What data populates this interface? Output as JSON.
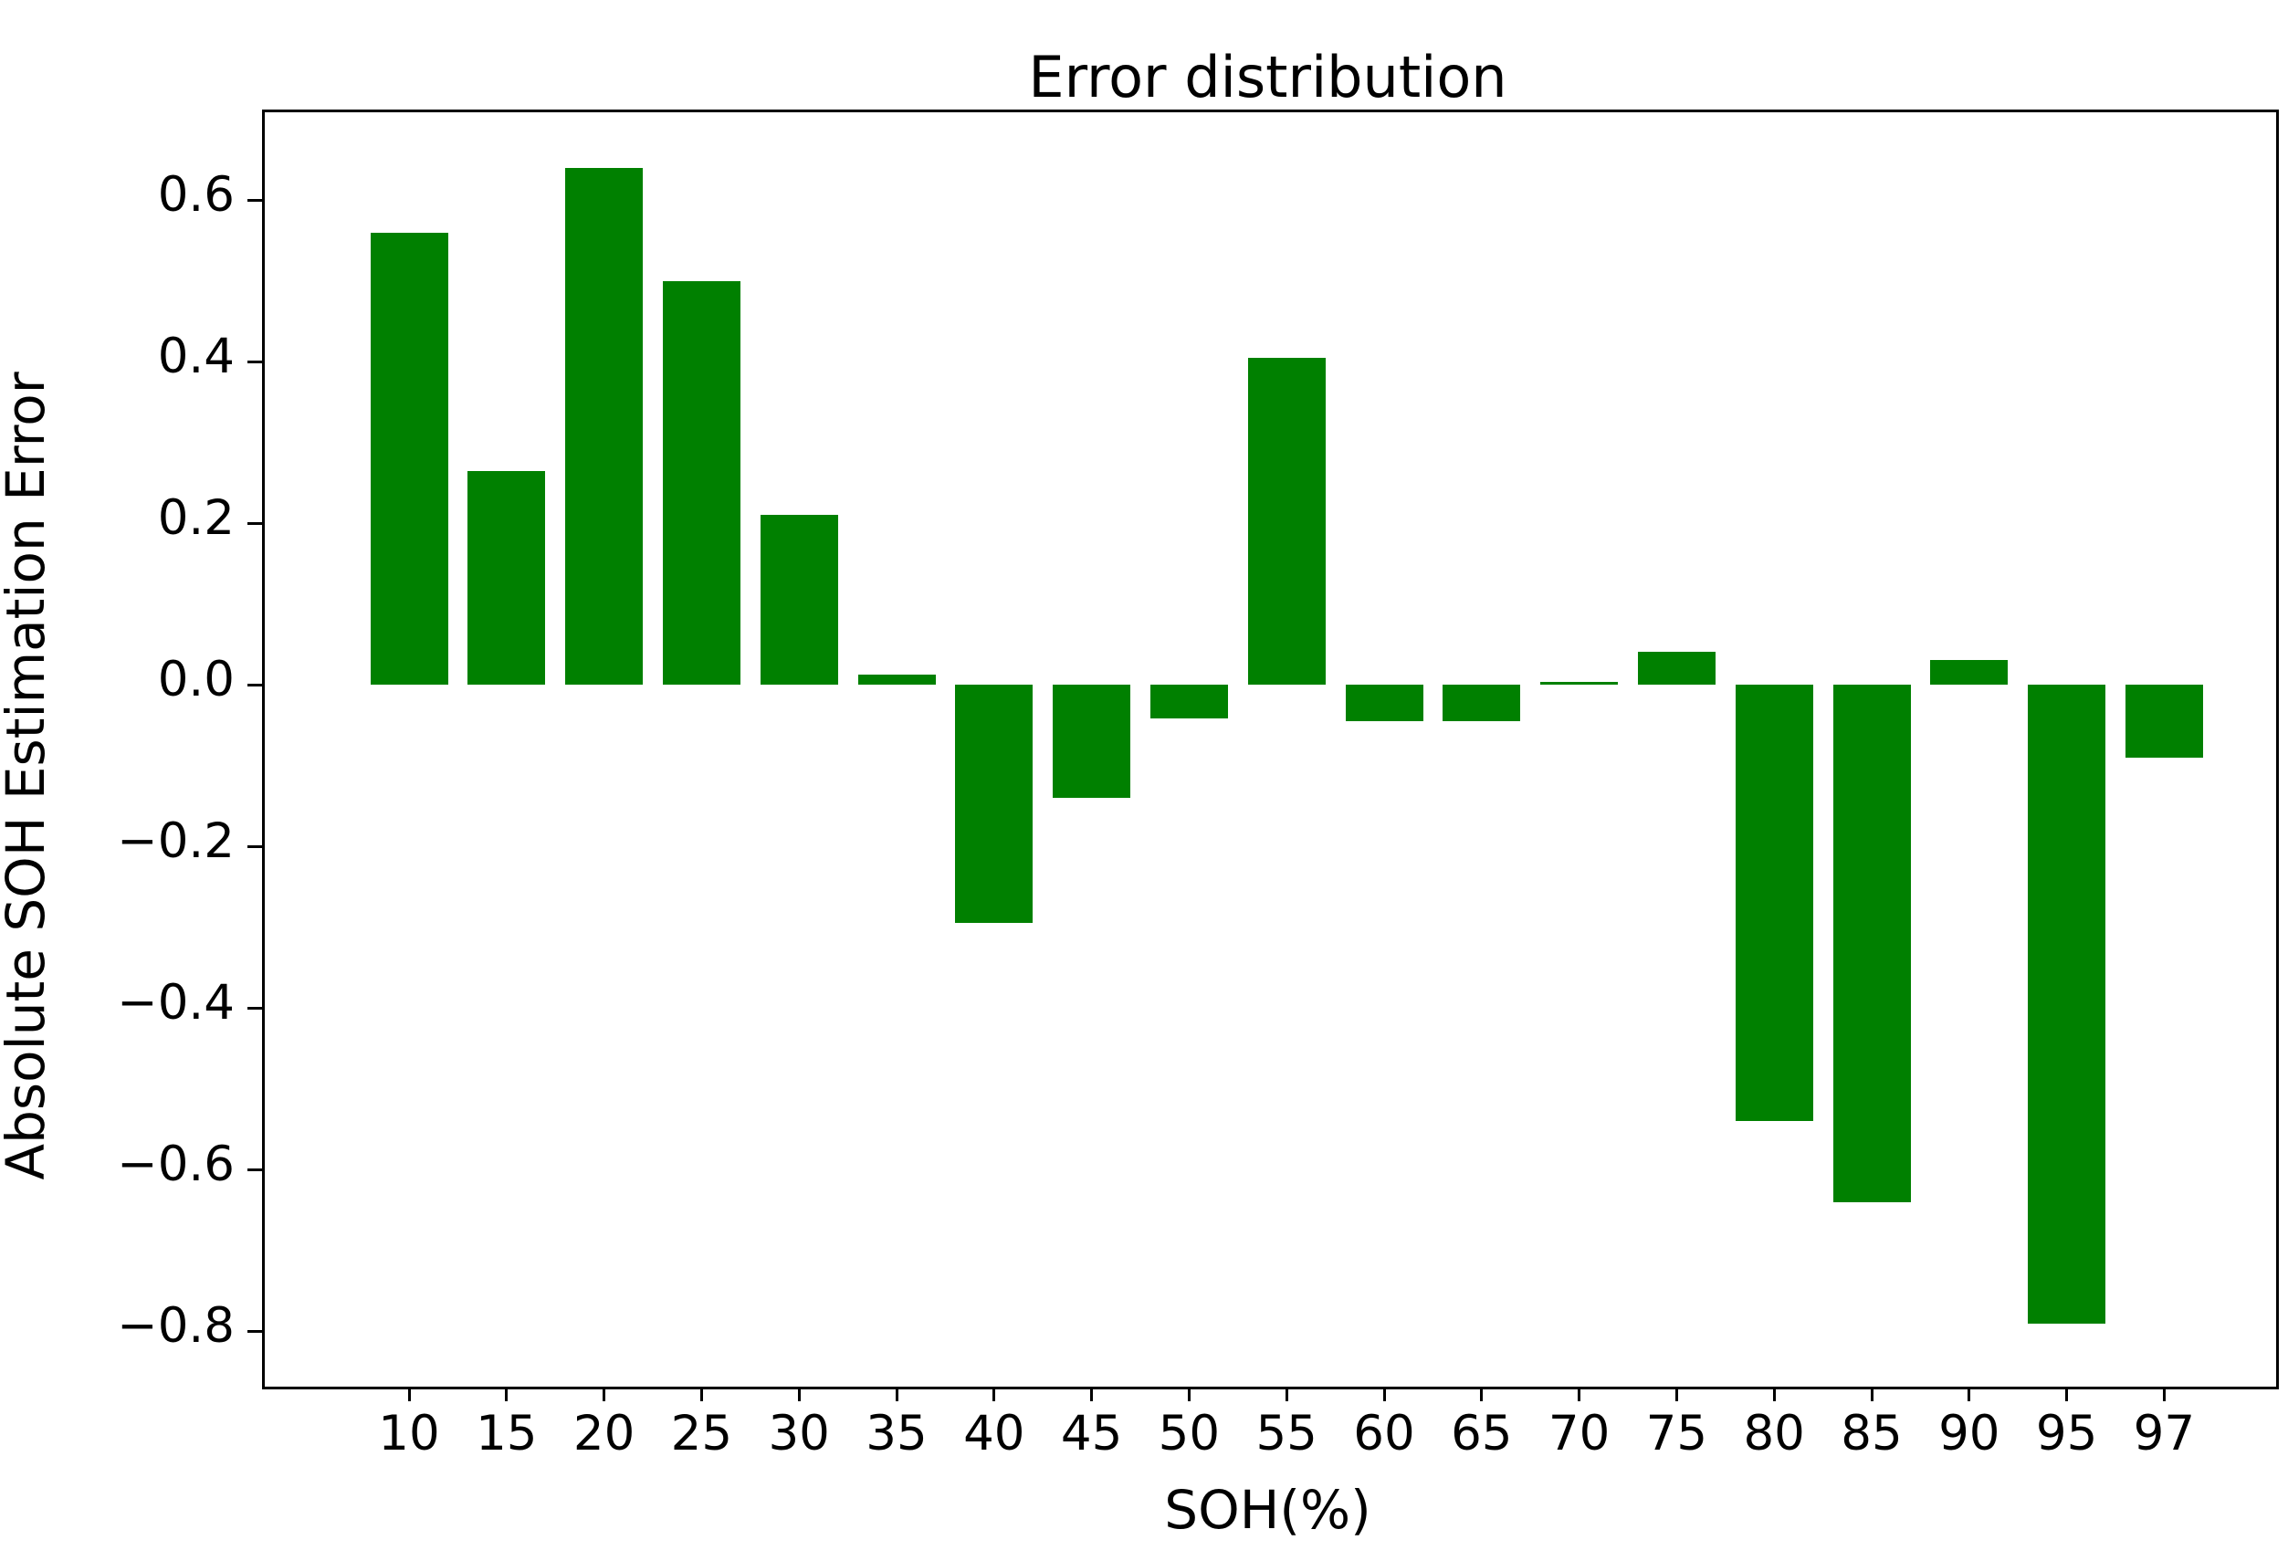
{
  "title": "Error distribution",
  "chart_data": {
    "type": "bar",
    "title": "Error distribution",
    "xlabel": "SOH(%)",
    "ylabel": "Absolute SOH Estimation Error",
    "categories": [
      "10",
      "15",
      "20",
      "25",
      "30",
      "35",
      "40",
      "45",
      "50",
      "55",
      "60",
      "65",
      "70",
      "75",
      "80",
      "85",
      "90",
      "95",
      "97"
    ],
    "values": [
      0.56,
      0.265,
      0.64,
      0.5,
      0.21,
      0.013,
      -0.295,
      -0.14,
      -0.042,
      0.405,
      -0.045,
      -0.045,
      0.004,
      0.041,
      -0.54,
      -0.64,
      0.031,
      -0.79,
      -0.09
    ],
    "bar_color": "#008000",
    "bar_width_frac": 0.8,
    "yticks": [
      0.6,
      0.4,
      0.2,
      0.0,
      -0.2,
      -0.4,
      -0.6,
      -0.8
    ],
    "ytick_labels": [
      "0.6",
      "0.4",
      "0.2",
      "0.0",
      "−0.2",
      "−0.4",
      "−0.6",
      "−0.8"
    ],
    "ylim": [
      -0.865,
      0.712
    ],
    "grid": false,
    "legend": null
  }
}
